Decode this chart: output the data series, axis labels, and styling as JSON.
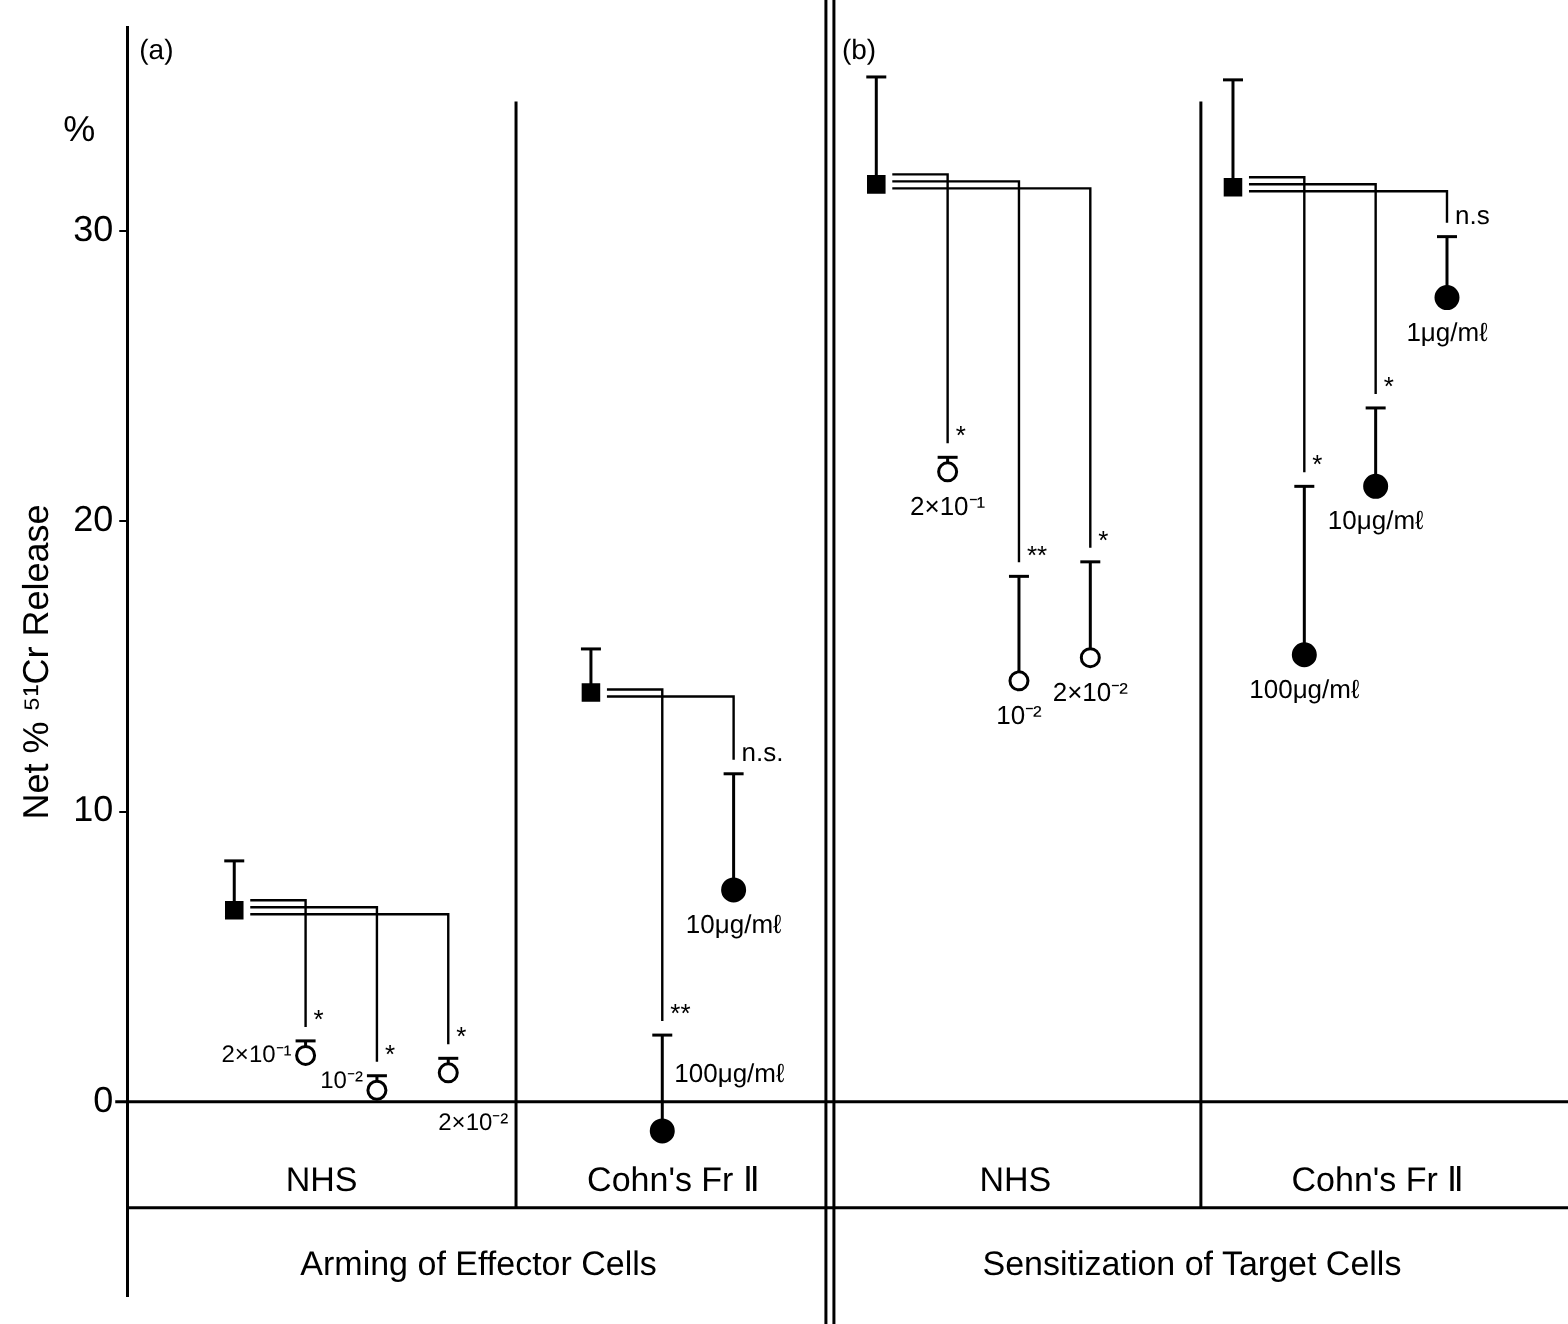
{
  "chart_data": {
    "type": "scatter",
    "ylabel": "Net % ⁵¹Cr Release",
    "categories": [
      null,
      null,
      null,
      null,
      null,
      null,
      null,
      null,
      null,
      null,
      null,
      null,
      null,
      null,
      null,
      null,
      null,
      null,
      null,
      null
    ],
    "ylim": [
      -6.7,
      37
    ],
    "yticks": [
      0,
      10,
      20,
      30
    ],
    "annotations": [
      "(a)",
      "(b)",
      "%",
      "*",
      "*",
      "*",
      "**",
      "n.s.",
      "*",
      "**",
      "*",
      "*",
      "*",
      "n.s",
      "2×10⁻¹",
      "10⁻²",
      "2×10⁻²",
      "100μg/mℓ",
      "10μg/mℓ",
      "2×10⁻¹",
      "10⁻²",
      "2×10⁻²",
      "100μg/mℓ",
      "10μg/mℓ",
      "1μg/mℓ",
      "NHS",
      "Cohn's Fr Ⅱ",
      "NHS",
      "Cohn's Fr Ⅱ",
      "Arming of Effector Cells",
      "Sensitization of Target Cells"
    ],
    "series": [
      {
        "color": "#000000",
        "marker": "square",
        "values": [
          null,
          6.6,
          null,
          null,
          null,
          null,
          14.1,
          null,
          null,
          null,
          31.6,
          null,
          null,
          null,
          null,
          31.5,
          null,
          null,
          null,
          null
        ],
        "errors": [
          null,
          [
            6.6,
            8.3
          ],
          null,
          null,
          null,
          null,
          [
            14.1,
            15.6
          ],
          null,
          null,
          null,
          [
            31.6,
            35.3
          ],
          null,
          null,
          null,
          null,
          [
            31.5,
            35.2
          ],
          null,
          null,
          null,
          null
        ]
      },
      {
        "color": "#000000",
        "marker": "circle",
        "values": [
          null,
          null,
          1.6,
          0.4,
          1.0,
          null,
          null,
          null,
          null,
          null,
          null,
          21.7,
          14.5,
          15.3,
          null,
          null,
          null,
          null,
          null,
          null
        ],
        "errors": [
          null,
          null,
          [
            1.6,
            2.1
          ],
          [
            0.4,
            0.9
          ],
          [
            1.0,
            1.5
          ],
          null,
          null,
          null,
          null,
          null,
          null,
          [
            21.7,
            22.2
          ],
          [
            14.5,
            18.1
          ],
          [
            15.3,
            18.6
          ],
          null,
          null,
          null,
          null,
          null,
          null
        ]
      },
      {
        "color": "#000000",
        "marker": "circle",
        "values": [
          null,
          null,
          null,
          null,
          null,
          null,
          null,
          -1.0,
          7.3,
          null,
          null,
          null,
          null,
          null,
          null,
          null,
          15.4,
          21.2,
          27.7,
          null
        ],
        "errors": [
          null,
          null,
          null,
          null,
          null,
          null,
          null,
          [
            -1.0,
            2.3
          ],
          [
            7.3,
            11.3
          ],
          null,
          null,
          null,
          null,
          null,
          null,
          null,
          [
            15.4,
            21.2
          ],
          [
            21.2,
            23.9
          ],
          [
            27.7,
            29.8
          ],
          null
        ]
      }
    ]
  }
}
